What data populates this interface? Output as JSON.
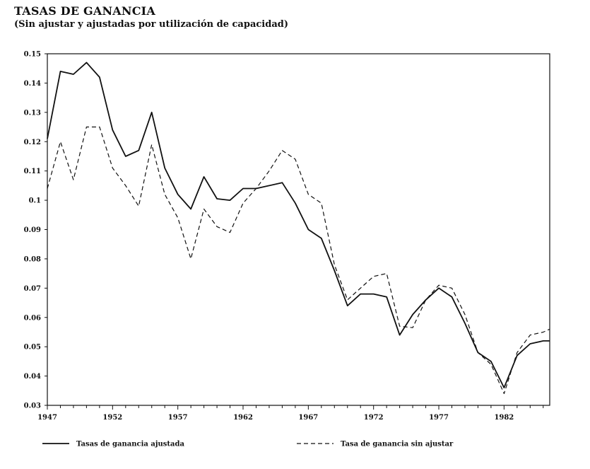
{
  "chart_data": {
    "type": "line",
    "title": "TASAS DE GANANCIA",
    "subtitle": "(Sin ajustar y ajustadas por utilización de capacidad)",
    "xlabel": "",
    "ylabel": "",
    "xlim": [
      1947,
      1985.5
    ],
    "ylim": [
      0.03,
      0.15
    ],
    "x_ticks": [
      1947,
      1952,
      1957,
      1962,
      1967,
      1972,
      1977,
      1982
    ],
    "y_ticks": [
      0.03,
      0.04,
      0.05,
      0.06,
      0.07,
      0.08,
      0.09,
      0.1,
      0.11,
      0.12,
      0.13,
      0.14,
      0.15
    ],
    "y_tick_labels": [
      "0.03",
      "0.04",
      "0.05",
      "0.06",
      "0.07",
      "0.08",
      "0.09",
      "0.1",
      "0.11",
      "0.12",
      "0.13",
      "0.14",
      "0.15"
    ],
    "legend_placement": "bottom",
    "x": [
      1947,
      1948,
      1949,
      1950,
      1951,
      1952,
      1953,
      1954,
      1955,
      1956,
      1957,
      1958,
      1959,
      1960,
      1961,
      1962,
      1963,
      1964,
      1965,
      1966,
      1967,
      1968,
      1969,
      1970,
      1971,
      1972,
      1973,
      1974,
      1975,
      1976,
      1977,
      1978,
      1979,
      1980,
      1981,
      1982,
      1983,
      1984,
      1985,
      1985.5
    ],
    "series": [
      {
        "name": "Tasas de ganancia ajustada",
        "style": "solid",
        "values": [
          0.121,
          0.144,
          0.143,
          0.147,
          0.142,
          0.124,
          0.115,
          0.117,
          0.13,
          0.111,
          0.102,
          0.097,
          0.108,
          0.1005,
          0.1,
          0.104,
          0.104,
          0.105,
          0.106,
          0.099,
          0.09,
          0.087,
          0.076,
          0.064,
          0.068,
          0.068,
          0.067,
          0.054,
          0.061,
          0.066,
          0.07,
          0.067,
          0.058,
          0.048,
          0.045,
          0.036,
          0.047,
          0.051,
          0.052,
          0.052
        ]
      },
      {
        "name": "Tasa de ganancia sin ajustar",
        "style": "dashed",
        "values": [
          0.104,
          0.12,
          0.107,
          0.125,
          0.125,
          0.111,
          0.105,
          0.098,
          0.119,
          0.102,
          0.094,
          0.08,
          0.097,
          0.091,
          0.089,
          0.099,
          0.104,
          0.11,
          0.117,
          0.114,
          0.102,
          0.099,
          0.078,
          0.066,
          0.07,
          0.074,
          0.075,
          0.057,
          0.0565,
          0.066,
          0.071,
          0.07,
          0.061,
          0.048,
          0.044,
          0.034,
          0.048,
          0.054,
          0.055,
          0.056
        ]
      }
    ]
  }
}
